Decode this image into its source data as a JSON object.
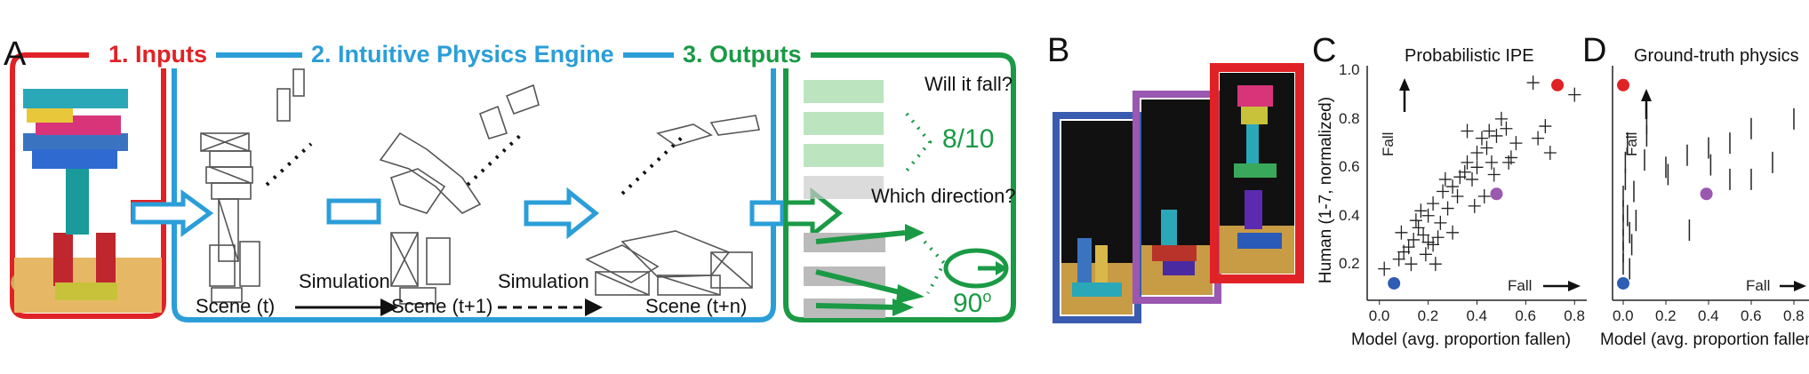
{
  "colors": {
    "inputs": "#e02226",
    "engine": "#2b9ed8",
    "outputs": "#1a9a45",
    "blue_frame": "#3a5cb0",
    "purple_frame": "#9a58b0",
    "red_frame": "#e02226",
    "marker_blue": "#2f5db5",
    "marker_purple": "#9a58b0",
    "marker_red": "#e02226"
  },
  "panel_a": {
    "letter": "A",
    "headers": {
      "inputs": "1. Inputs",
      "engine": "2. Intuitive Physics Engine",
      "outputs": "3. Outputs"
    },
    "stages": [
      "Scene (t)",
      "Scene (t+1)",
      "Scene (t+n)"
    ],
    "sim_labels": [
      "Simulation",
      "Simulation"
    ],
    "questions": {
      "fall": "Will it fall?",
      "fall_answer": "8/10",
      "direction": "Which direction?",
      "direction_answer": "90",
      "direction_unit": "o"
    }
  },
  "panel_b": {
    "letter": "B"
  },
  "panel_c": {
    "letter": "C",
    "title": "Probabilistic IPE"
  },
  "panel_d": {
    "letter": "D",
    "title": "Ground-truth physics"
  },
  "chart_data": [
    {
      "type": "scatter",
      "title": "Probabilistic IPE",
      "xlabel": "Model (avg. proportion fallen)",
      "ylabel": "Human (1-7, normalized)",
      "xlim": [
        -0.05,
        0.85
      ],
      "ylim": [
        0.05,
        1.02
      ],
      "xticks": [
        0.0,
        0.2,
        0.4,
        0.6,
        0.8
      ],
      "yticks": [
        0.2,
        0.4,
        0.6,
        0.8,
        1.0
      ],
      "annotations": {
        "fall_x": "Fall",
        "fall_y": "Fall"
      },
      "points": [
        [
          0.02,
          0.18
        ],
        [
          0.08,
          0.22
        ],
        [
          0.1,
          0.25
        ],
        [
          0.12,
          0.27
        ],
        [
          0.09,
          0.33
        ],
        [
          0.14,
          0.3
        ],
        [
          0.16,
          0.35
        ],
        [
          0.18,
          0.32
        ],
        [
          0.2,
          0.29
        ],
        [
          0.22,
          0.28
        ],
        [
          0.24,
          0.31
        ],
        [
          0.15,
          0.38
        ],
        [
          0.17,
          0.42
        ],
        [
          0.2,
          0.4
        ],
        [
          0.22,
          0.45
        ],
        [
          0.25,
          0.37
        ],
        [
          0.28,
          0.43
        ],
        [
          0.26,
          0.5
        ],
        [
          0.3,
          0.52
        ],
        [
          0.32,
          0.48
        ],
        [
          0.27,
          0.55
        ],
        [
          0.33,
          0.56
        ],
        [
          0.35,
          0.58
        ],
        [
          0.36,
          0.62
        ],
        [
          0.38,
          0.55
        ],
        [
          0.4,
          0.6
        ],
        [
          0.4,
          0.66
        ],
        [
          0.42,
          0.72
        ],
        [
          0.44,
          0.68
        ],
        [
          0.45,
          0.75
        ],
        [
          0.46,
          0.62
        ],
        [
          0.48,
          0.73
        ],
        [
          0.5,
          0.8
        ],
        [
          0.52,
          0.76
        ],
        [
          0.47,
          0.57
        ],
        [
          0.54,
          0.64
        ],
        [
          0.56,
          0.7
        ],
        [
          0.43,
          0.48
        ],
        [
          0.3,
          0.33
        ],
        [
          0.23,
          0.2
        ],
        [
          0.19,
          0.24
        ],
        [
          0.13,
          0.2
        ],
        [
          0.65,
          0.72
        ],
        [
          0.68,
          0.77
        ],
        [
          0.7,
          0.66
        ],
        [
          0.63,
          0.95
        ],
        [
          0.8,
          0.9
        ],
        [
          0.36,
          0.75
        ],
        [
          0.53,
          0.62
        ],
        [
          0.39,
          0.44
        ]
      ],
      "highlights": [
        {
          "color": "marker_blue",
          "x": 0.06,
          "y": 0.12
        },
        {
          "color": "marker_purple",
          "x": 0.48,
          "y": 0.49
        },
        {
          "color": "marker_red",
          "x": 0.73,
          "y": 0.94
        }
      ]
    },
    {
      "type": "scatter",
      "title": "Ground-truth physics",
      "xlabel": "Model (avg. proportion fallen)",
      "ylabel": "",
      "xlim": [
        -0.05,
        0.85
      ],
      "ylim": [
        0.05,
        1.02
      ],
      "xticks": [
        0.0,
        0.2,
        0.4,
        0.6,
        0.8
      ],
      "yticks": [],
      "annotations": {
        "fall_x": "Fall",
        "fall_y": "Fall"
      },
      "points": [
        [
          0.0,
          0.2
        ],
        [
          0.0,
          0.25
        ],
        [
          0.0,
          0.3
        ],
        [
          0.0,
          0.36
        ],
        [
          0.0,
          0.42
        ],
        [
          0.0,
          0.48
        ],
        [
          0.01,
          0.55
        ],
        [
          0.01,
          0.62
        ],
        [
          0.02,
          0.7
        ],
        [
          0.02,
          0.4
        ],
        [
          0.03,
          0.33
        ],
        [
          0.03,
          0.18
        ],
        [
          0.04,
          0.28
        ],
        [
          0.05,
          0.5
        ],
        [
          0.06,
          0.38
        ],
        [
          0.1,
          0.63
        ],
        [
          0.11,
          0.73
        ],
        [
          0.2,
          0.6
        ],
        [
          0.21,
          0.57
        ],
        [
          0.3,
          0.65
        ],
        [
          0.31,
          0.34
        ],
        [
          0.4,
          0.68
        ],
        [
          0.5,
          0.7
        ],
        [
          0.5,
          0.55
        ],
        [
          0.6,
          0.76
        ],
        [
          0.7,
          0.62
        ],
        [
          0.8,
          0.8
        ],
        [
          0.41,
          0.61
        ],
        [
          0.11,
          0.78
        ],
        [
          0.6,
          0.55
        ]
      ],
      "highlights": [
        {
          "color": "marker_blue",
          "x": 0.0,
          "y": 0.12
        },
        {
          "color": "marker_purple",
          "x": 0.39,
          "y": 0.49
        },
        {
          "color": "marker_red",
          "x": 0.0,
          "y": 0.94
        }
      ]
    }
  ]
}
